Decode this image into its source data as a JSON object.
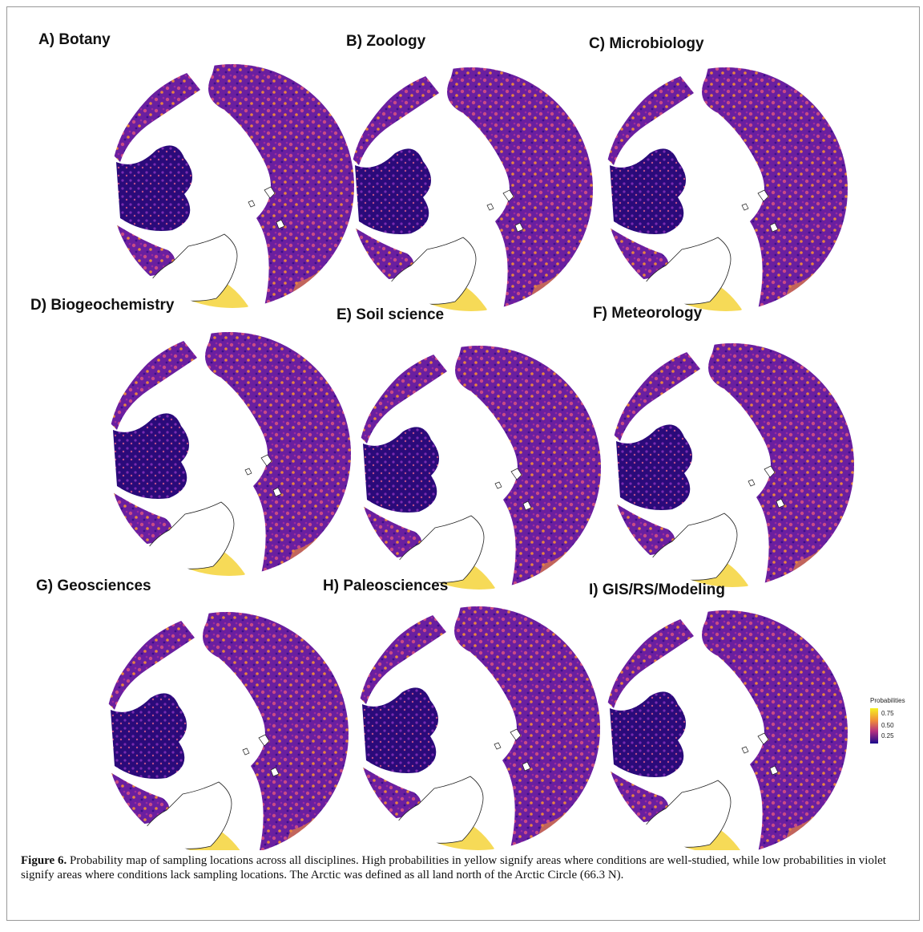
{
  "panels": [
    {
      "title": "A) Botany"
    },
    {
      "title": "B) Zoology"
    },
    {
      "title": "C) Microbiology"
    },
    {
      "title": "D) Biogeochemistry"
    },
    {
      "title": "E) Soil science"
    },
    {
      "title": "F) Meteorology"
    },
    {
      "title": "G) Geosciences"
    },
    {
      "title": "H) Paleosciences"
    },
    {
      "title": "I) GIS/RS/Modeling"
    }
  ],
  "legend": {
    "title": "Probabilities",
    "labels": [
      "0.75",
      "0.50",
      "0.25"
    ]
  },
  "caption": {
    "label": "Figure 6.",
    "text": "Probability map of sampling locations across all disciplines. High probabilities in yellow signify areas where conditions are well-studied, while low probabilities in violet signify areas where conditions lack sampling locations. The Arctic was defined as all land north of the Arctic Circle (66.3 N)."
  }
}
